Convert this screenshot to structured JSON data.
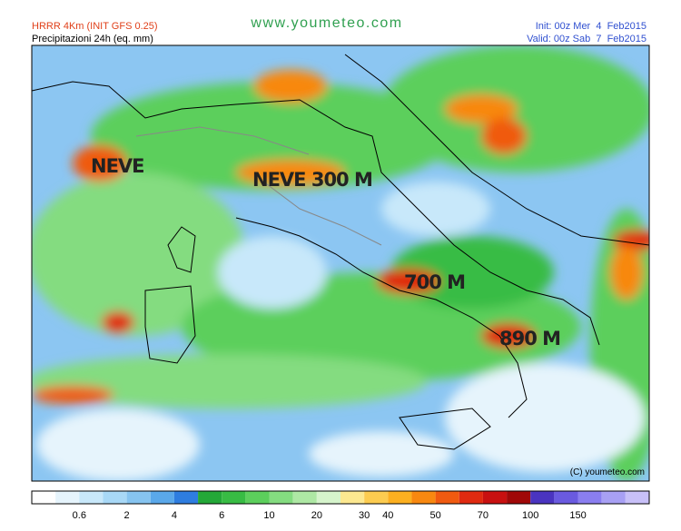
{
  "header": {
    "model": "HRRR 4Km (INIT GFS 0.25)",
    "variable": "Precipitazioni 24h (eq. mm)",
    "site": "www.youmeteo.com",
    "init": "Init: 00z Mer  4  Feb2015",
    "valid": "Valid: 00z Sab  7  Feb2015"
  },
  "map": {
    "annotations": [
      "NEVE",
      "NEVE 300 M",
      "700 M",
      "890 M"
    ],
    "credit": "(C) youmeteo.com"
  },
  "legend": {
    "colors": [
      "#ffffff",
      "#e6f4fc",
      "#c8e8fa",
      "#a8d8f6",
      "#86c4f0",
      "#5aa8ea",
      "#2e7de0",
      "#24a838",
      "#38bc44",
      "#5ccf5c",
      "#84dc80",
      "#aee8a4",
      "#d6f4cc",
      "#fce890",
      "#fccc50",
      "#fcb020",
      "#f88810",
      "#f05a10",
      "#e02a10",
      "#c81010",
      "#a00808",
      "#4a34c0",
      "#6a5ae0",
      "#8a7ef0",
      "#a8a0f4",
      "#c8c0f8"
    ],
    "labels": [
      0.6,
      2,
      4,
      6,
      10,
      20,
      30,
      40,
      50,
      70,
      100,
      150
    ]
  }
}
